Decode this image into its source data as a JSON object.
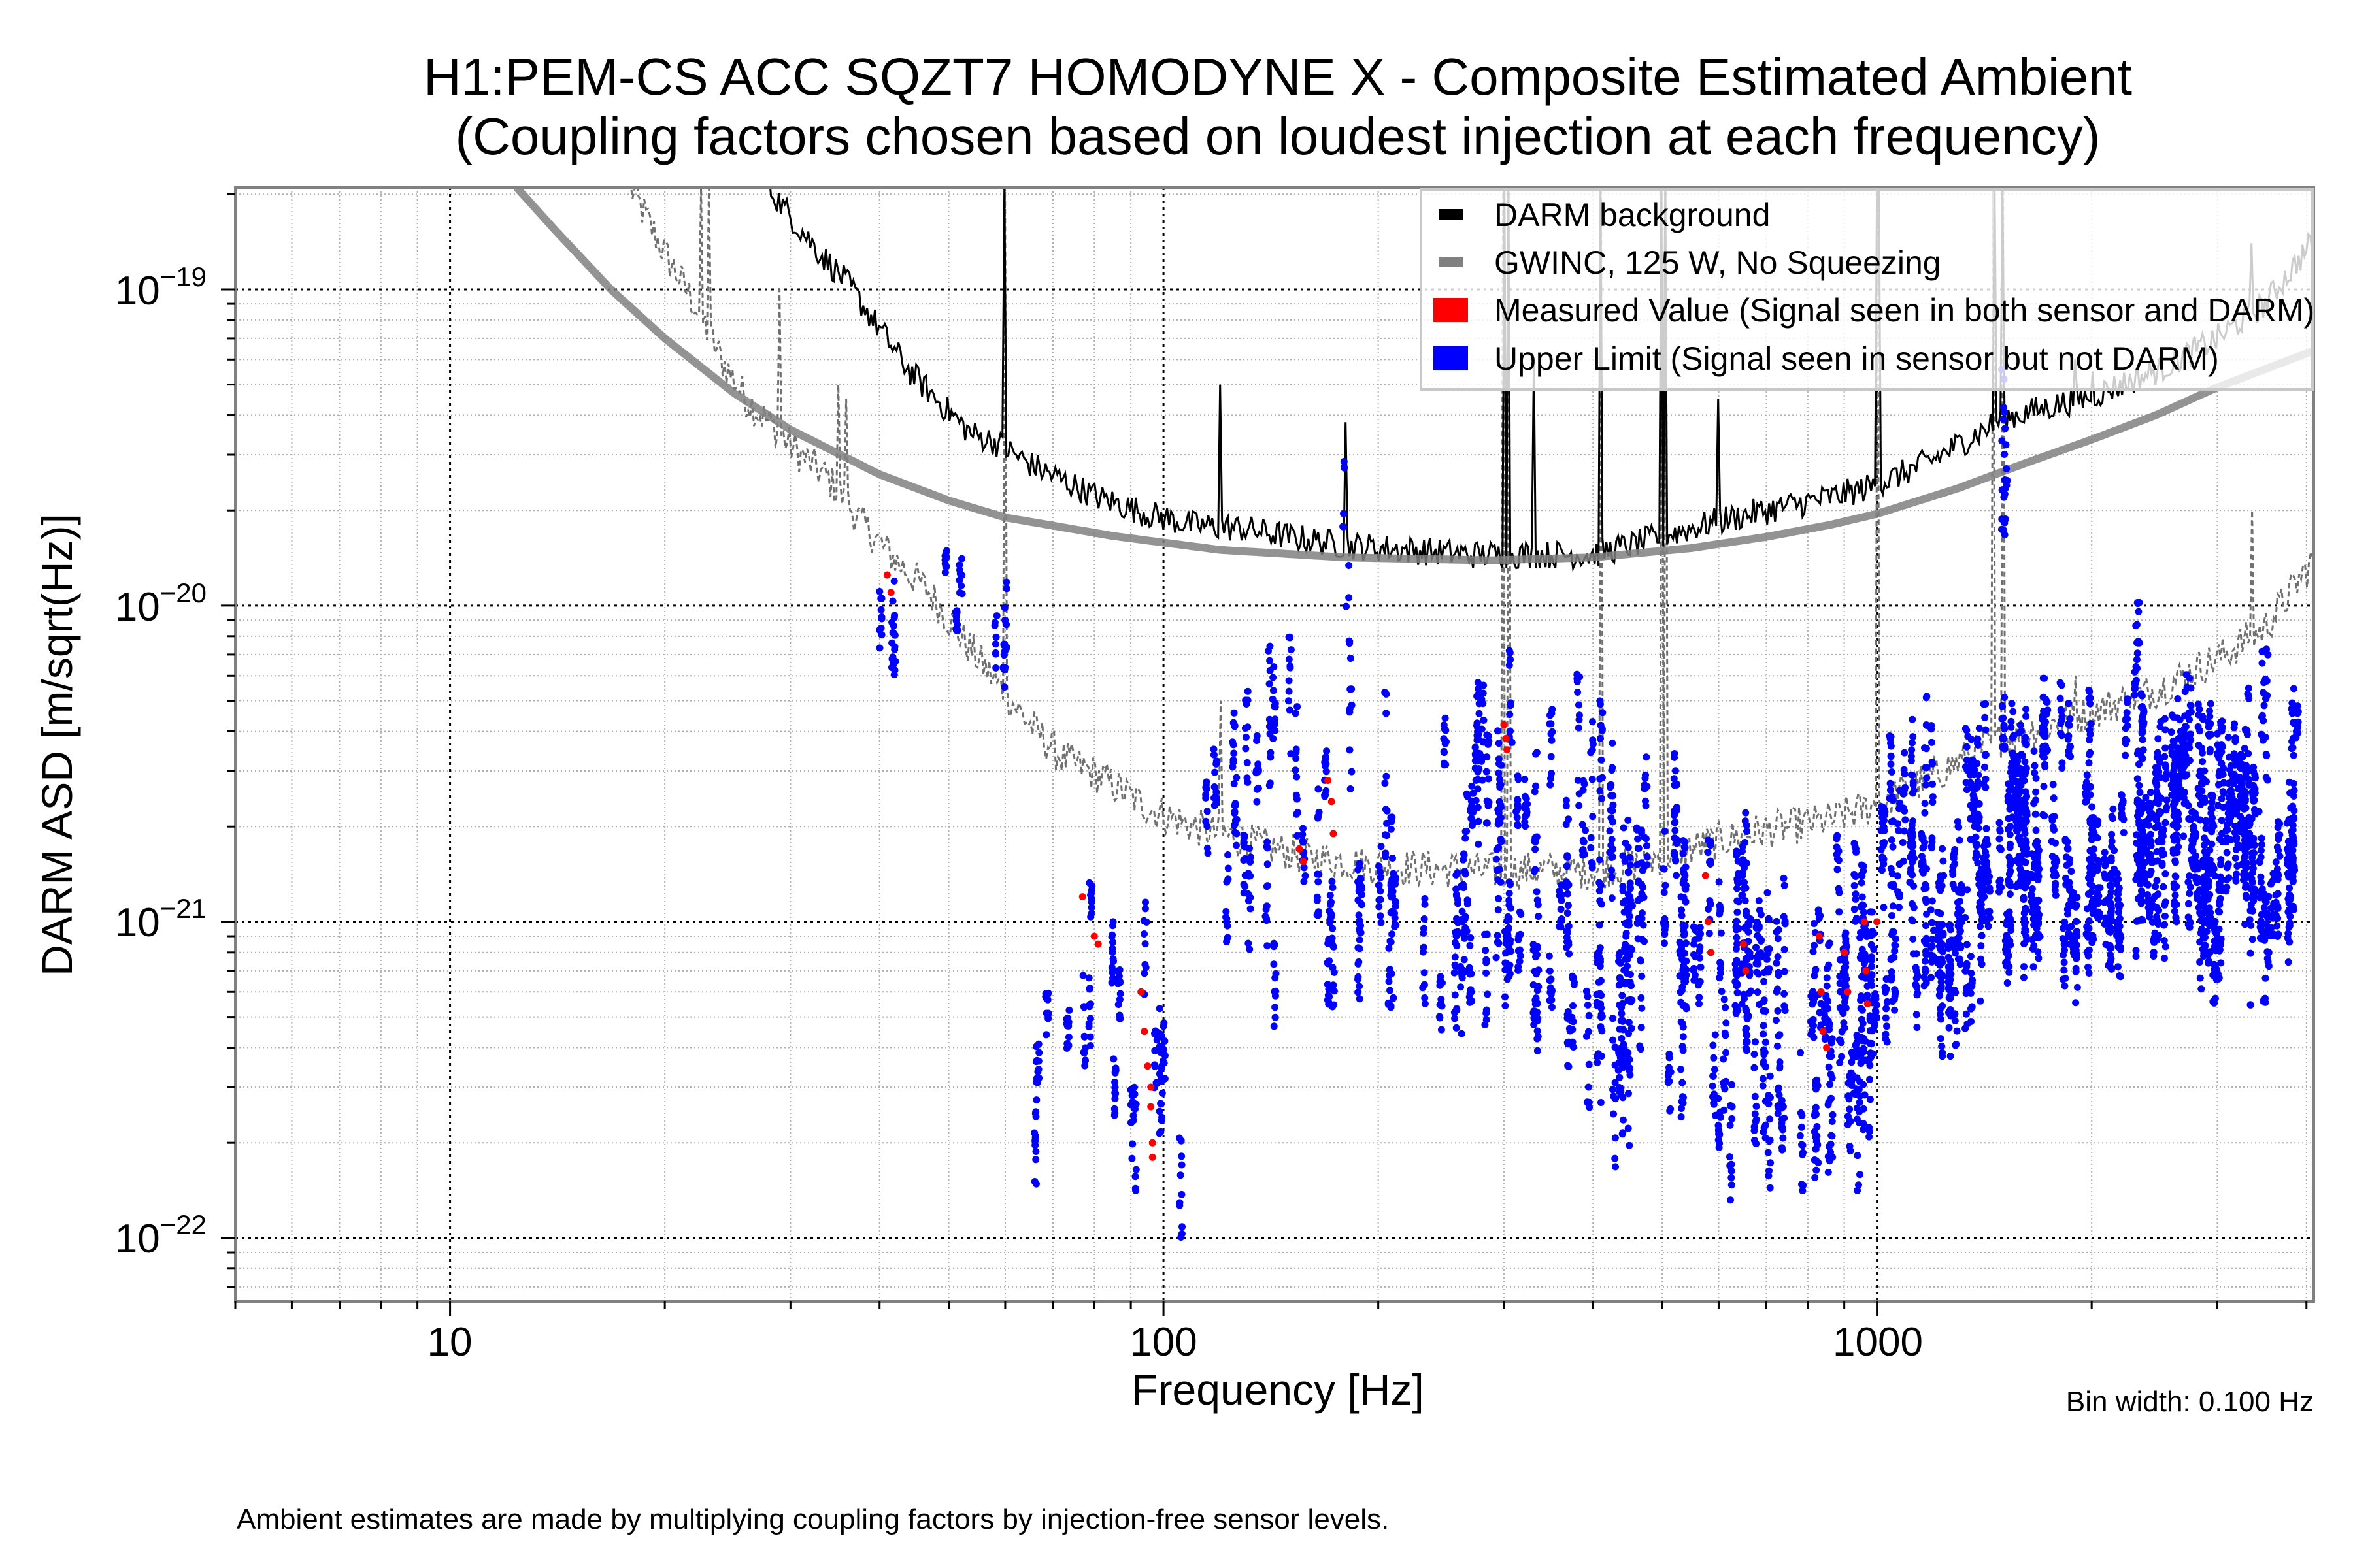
{
  "chart_data": {
    "type": "scatter",
    "title": "H1:PEM-CS ACC SQZT7 HOMODYNE X - Composite Estimated Ambient",
    "subtitle": "(Coupling factors chosen based on loudest injection at each frequency)",
    "xlabel": "Frequency [Hz]",
    "ylabel": "DARM ASD [m/sqrt(Hz)]",
    "xscale": "log",
    "yscale": "log",
    "xlim": [
      5,
      4096
    ],
    "ylim": [
      6.3e-23,
      2.1e-19
    ],
    "x_ticks": [
      {
        "value": 10,
        "label": "10"
      },
      {
        "value": 100,
        "label": "100"
      },
      {
        "value": 1000,
        "label": "1000"
      }
    ],
    "y_ticks": [
      {
        "value": 1e-19,
        "base": "10",
        "exp": "−19"
      },
      {
        "value": 1e-20,
        "base": "10",
        "exp": "−20"
      },
      {
        "value": 1e-21,
        "base": "10",
        "exp": "−21"
      },
      {
        "value": 1e-22,
        "base": "10",
        "exp": "−22"
      }
    ],
    "grid": true,
    "legend_position": "top-right",
    "legend": [
      {
        "label": "DARM background",
        "color": "#000000",
        "kind": "line"
      },
      {
        "label": "GWINC, 125 W, No Squeezing",
        "color": "#808080",
        "kind": "line"
      },
      {
        "label": "Measured Value (Signal seen in both sensor and DARM)",
        "color": "#ff0000",
        "kind": "marker"
      },
      {
        "label": "Upper Limit (Signal seen in sensor but not DARM)",
        "color": "#0000ff",
        "kind": "marker"
      }
    ],
    "series": [
      {
        "name": "GWINC, 125 W, No Squeezing",
        "color": "#808080",
        "style": "solid-thick",
        "points": [
          [
            12.4,
            2.1e-19
          ],
          [
            14,
            1.55e-19
          ],
          [
            16.8,
            1e-19
          ],
          [
            20,
            7e-20
          ],
          [
            25,
            4.7e-20
          ],
          [
            30,
            3.6e-20
          ],
          [
            40,
            2.6e-20
          ],
          [
            50,
            2.15e-20
          ],
          [
            60,
            1.9e-20
          ],
          [
            85,
            1.66e-20
          ],
          [
            120,
            1.5e-20
          ],
          [
            180,
            1.42e-20
          ],
          [
            287,
            1.39e-20
          ],
          [
            400,
            1.42e-20
          ],
          [
            550,
            1.52e-20
          ],
          [
            700,
            1.65e-20
          ],
          [
            860,
            1.8e-20
          ],
          [
            1000,
            1.95e-20
          ],
          [
            1300,
            2.35e-20
          ],
          [
            1600,
            2.8e-20
          ],
          [
            2000,
            3.35e-20
          ],
          [
            2460,
            4e-20
          ],
          [
            3000,
            4.9e-20
          ],
          [
            4096,
            6.4e-20
          ]
        ]
      },
      {
        "name": "DARM background",
        "color": "#000000",
        "style": "solid",
        "points": [
          [
            28,
            2.1e-19
          ],
          [
            30,
            1.7e-19
          ],
          [
            33,
            1.3e-19
          ],
          [
            36,
            1.05e-19
          ],
          [
            40,
            7.5e-20
          ],
          [
            43.8,
            5.6e-20
          ],
          [
            48,
            4.5e-20
          ],
          [
            53.7,
            3.5e-20
          ],
          [
            58,
            3.3e-20
          ],
          [
            65,
            2.8e-20
          ],
          [
            72,
            2.5e-20
          ],
          [
            81,
            2.2e-20
          ],
          [
            95,
            1.95e-20
          ],
          [
            110,
            1.8e-20
          ],
          [
            130,
            1.75e-20
          ],
          [
            150,
            1.65e-20
          ],
          [
            180,
            1.55e-20
          ],
          [
            220,
            1.5e-20
          ],
          [
            270,
            1.45e-20
          ],
          [
            330,
            1.45e-20
          ],
          [
            400,
            1.45e-20
          ],
          [
            450,
            1.55e-20
          ],
          [
            520,
            1.7e-20
          ],
          [
            600,
            1.85e-20
          ],
          [
            700,
            2e-20
          ],
          [
            860,
            2.2e-20
          ],
          [
            1000,
            2.4e-20
          ],
          [
            1200,
            2.9e-20
          ],
          [
            1500,
            3.9e-20
          ],
          [
            2000,
            4.6e-20
          ],
          [
            2500,
            5.6e-20
          ],
          [
            3000,
            7e-20
          ],
          [
            3500,
            9e-20
          ],
          [
            4096,
            1.43e-19
          ]
        ],
        "spikes": [
          [
            60,
            2.1e-19
          ],
          [
            120,
            5e-20
          ],
          [
            180,
            3.8e-20
          ],
          [
            300,
            2.1e-19
          ],
          [
            305,
            2.1e-19
          ],
          [
            331,
            6e-20
          ],
          [
            410,
            2.1e-19
          ],
          [
            500,
            2.1e-19
          ],
          [
            505,
            2.1e-19
          ],
          [
            600,
            4.5e-20
          ],
          [
            1000,
            2.1e-19
          ],
          [
            1005,
            2.1e-19
          ],
          [
            1460,
            2.1e-19
          ],
          [
            1500,
            2.1e-19
          ],
          [
            1900,
            6e-20
          ],
          [
            2000,
            5.5e-20
          ],
          [
            3333,
            7e-20
          ],
          [
            3350,
            1.4e-19
          ]
        ]
      },
      {
        "name": "DARM background / 10 (dashed reference)",
        "color": "#707070",
        "style": "dashed",
        "points": [
          [
            17.9,
            2.1e-19
          ],
          [
            20,
            1.3e-19
          ],
          [
            22,
            9e-20
          ],
          [
            24,
            6e-20
          ],
          [
            26,
            4.5e-20
          ],
          [
            30,
            3.2e-20
          ],
          [
            34,
            2.5e-20
          ],
          [
            38,
            1.8e-20
          ],
          [
            42,
            1.4e-20
          ],
          [
            47,
            1.1e-20
          ],
          [
            52,
            8e-21
          ],
          [
            58,
            5.8e-21
          ],
          [
            65,
            4.2e-21
          ],
          [
            72,
            3.3e-21
          ],
          [
            81,
            2.9e-21
          ],
          [
            95,
            2.3e-21
          ],
          [
            110,
            2e-21
          ],
          [
            130,
            1.8e-21
          ],
          [
            160,
            1.6e-21
          ],
          [
            200,
            1.5e-21
          ],
          [
            270,
            1.45e-21
          ],
          [
            330,
            1.45e-21
          ],
          [
            400,
            1.45e-21
          ],
          [
            450,
            1.5e-21
          ],
          [
            520,
            1.65e-21
          ],
          [
            600,
            1.8e-21
          ],
          [
            700,
            1.95e-21
          ],
          [
            860,
            2.1e-21
          ],
          [
            1000,
            2.35e-21
          ],
          [
            1200,
            2.9e-21
          ],
          [
            1500,
            3.8e-21
          ],
          [
            2000,
            4.6e-21
          ],
          [
            2500,
            5.5e-21
          ],
          [
            3000,
            6.8e-21
          ],
          [
            3500,
            8.5e-21
          ],
          [
            4096,
            1.4e-20
          ]
        ],
        "spikes": [
          [
            22.5,
            2.1e-19
          ],
          [
            23,
            2.1e-19
          ],
          [
            29,
            1e-19
          ],
          [
            35,
            5e-20
          ],
          [
            36,
            4.5e-20
          ],
          [
            60,
            2.1e-19
          ],
          [
            120,
            5e-21
          ],
          [
            300,
            2.1e-19
          ],
          [
            305,
            2.1e-19
          ],
          [
            410,
            2.1e-19
          ],
          [
            500,
            2.1e-19
          ],
          [
            505,
            2.1e-19
          ],
          [
            1000,
            2.1e-19
          ],
          [
            1005,
            2.1e-19
          ],
          [
            1460,
            2.1e-19
          ],
          [
            1500,
            2.1e-19
          ],
          [
            1900,
            6e-21
          ],
          [
            2000,
            5.5e-21
          ],
          [
            3333,
            8e-21
          ],
          [
            3350,
            2e-20
          ]
        ]
      }
    ],
    "scatter_clusters": [
      {
        "type": "upper_limit",
        "f": [
          40,
          44
        ],
        "asd": [
          4e-21,
          2e-20
        ],
        "n": 30
      },
      {
        "type": "upper_limit",
        "f": [
          48,
          54
        ],
        "asd": [
          8e-21,
          1.8e-20
        ],
        "n": 30
      },
      {
        "type": "upper_limit",
        "f": [
          54,
          62
        ],
        "asd": [
          2e-21,
          9e-21
        ],
        "n": 25
      },
      {
        "type": "upper_limit",
        "f": [
          66,
          72
        ],
        "asd": [
          2e-22,
          1e-21
        ],
        "n": 40
      },
      {
        "type": "upper_limit",
        "f": [
          72,
          80
        ],
        "asd": [
          4e-22,
          1.8e-21
        ],
        "n": 45
      },
      {
        "type": "upper_limit",
        "f": [
          80,
          88
        ],
        "asd": [
          3e-22,
          1.2e-21
        ],
        "n": 40
      },
      {
        "type": "upper_limit",
        "f": [
          88,
          98
        ],
        "asd": [
          1.8e-22,
          9e-22
        ],
        "n": 45
      },
      {
        "type": "upper_limit",
        "f": [
          98,
          108
        ],
        "asd": [
          1.3e-22,
          1e-21
        ],
        "n": 45
      },
      {
        "type": "upper_limit",
        "f": [
          104,
          140
        ],
        "asd": [
          8e-22,
          4e-21
        ],
        "n": 120
      },
      {
        "type": "upper_limit",
        "f": [
          140,
          200
        ],
        "asd": [
          6e-22,
          5e-21
        ],
        "n": 180
      },
      {
        "type": "upper_limit",
        "f": [
          200,
          290
        ],
        "asd": [
          5e-22,
          4.5e-21
        ],
        "n": 260
      },
      {
        "type": "upper_limit",
        "f": [
          290,
          400
        ],
        "asd": [
          4e-22,
          5e-21
        ],
        "n": 300
      },
      {
        "type": "upper_limit",
        "f": [
          400,
          600
        ],
        "asd": [
          3e-22,
          3.5e-21
        ],
        "n": 420
      },
      {
        "type": "upper_limit",
        "f": [
          600,
          1000
        ],
        "asd": [
          2e-22,
          1.5e-21
        ],
        "n": 650
      },
      {
        "type": "upper_limit",
        "f": [
          1000,
          1400
        ],
        "asd": [
          5e-22,
          4e-21
        ],
        "n": 500
      },
      {
        "type": "upper_limit",
        "f": [
          1400,
          3000
        ],
        "asd": [
          8e-22,
          5e-21
        ],
        "n": 1400
      },
      {
        "type": "upper_limit",
        "f": [
          3000,
          4000
        ],
        "asd": [
          8e-22,
          5.5e-21
        ],
        "n": 500
      },
      {
        "type": "upper_limit",
        "f": [
          1500,
          1520
        ],
        "asd": [
          4e-21,
          4e-20
        ],
        "n": 40
      },
      {
        "type": "upper_limit",
        "f": [
          178,
          182
        ],
        "asd": [
          1e-20,
          3e-20
        ],
        "n": 8
      },
      {
        "type": "upper_limit",
        "f": [
          2300,
          2330
        ],
        "asd": [
          5e-21,
          1e-20
        ],
        "n": 20
      }
    ],
    "measured_points": [
      [
        41,
        1.25e-20
      ],
      [
        41.5,
        1.1e-20
      ],
      [
        77,
        1.2e-21
      ],
      [
        80,
        9e-22
      ],
      [
        81,
        8.5e-22
      ],
      [
        93,
        6e-22
      ],
      [
        94,
        4.5e-22
      ],
      [
        95,
        3.5e-22
      ],
      [
        96,
        3e-22
      ],
      [
        96,
        2.6e-22
      ],
      [
        96.5,
        2e-22
      ],
      [
        96.5,
        1.8e-22
      ],
      [
        155,
        1.7e-21
      ],
      [
        157,
        1.55e-21
      ],
      [
        170,
        2.8e-21
      ],
      [
        172,
        2.4e-21
      ],
      [
        173,
        1.9e-21
      ],
      [
        300,
        4.2e-21
      ],
      [
        302,
        3.8e-21
      ],
      [
        303,
        3.5e-21
      ],
      [
        575,
        1.4e-21
      ],
      [
        580,
        1e-21
      ],
      [
        585,
        8e-22
      ],
      [
        650,
        8.5e-22
      ],
      [
        655,
        7e-22
      ],
      [
        830,
        9e-22
      ],
      [
        835,
        6e-22
      ],
      [
        840,
        4.5e-22
      ],
      [
        850,
        4e-22
      ],
      [
        900,
        8e-22
      ],
      [
        910,
        6e-22
      ],
      [
        960,
        1e-21
      ],
      [
        965,
        7e-22
      ],
      [
        970,
        5.5e-22
      ],
      [
        1000,
        1e-21
      ]
    ]
  },
  "annotations": {
    "bin_width": "Bin width: 0.100 Hz",
    "footnote": "Ambient estimates are made by multiplying coupling factors by injection-free sensor levels."
  }
}
